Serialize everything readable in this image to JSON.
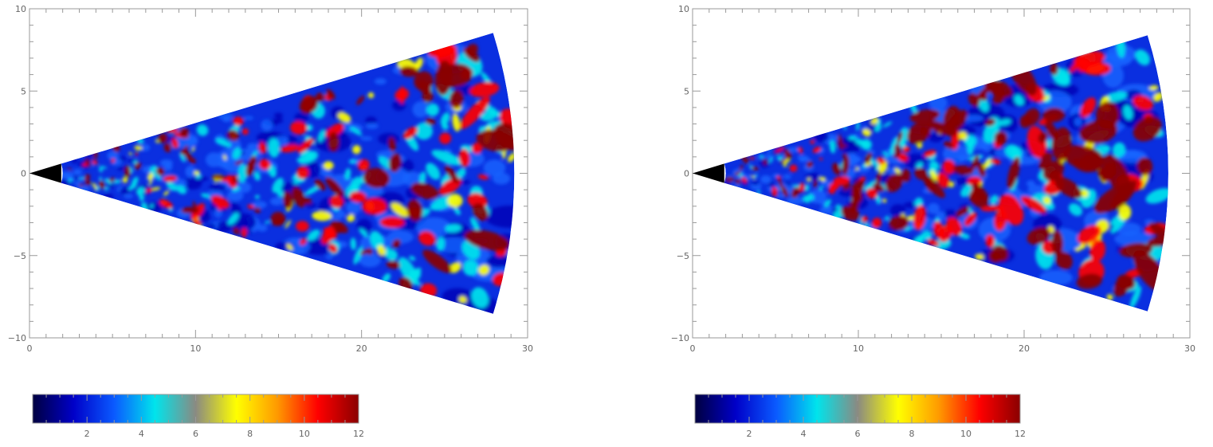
{
  "chart_data": [
    {
      "type": "heatmap",
      "shape": "wedge",
      "xlim": [
        0,
        30
      ],
      "ylim": [
        -10,
        10
      ],
      "xticks": [
        0,
        10,
        20,
        30
      ],
      "yticks": [
        -10,
        -5,
        0,
        5,
        10
      ],
      "x_tick_labels": [
        "0",
        "10",
        "20",
        "30"
      ],
      "y_tick_labels": [
        "−10",
        "−5",
        "0",
        "5",
        "10"
      ],
      "inner_radius": 2,
      "outer_radius": 29.2,
      "half_angle_deg": 17,
      "colorbar": {
        "range": [
          0,
          12
        ],
        "ticks": [
          2,
          4,
          6,
          8,
          10,
          12
        ],
        "tick_labels": [
          "2",
          "4",
          "6",
          "8",
          "10",
          "12"
        ],
        "colors": [
          "#000040",
          "#0000c8",
          "#0a5aff",
          "#00e4ec",
          "#8a8a82",
          "#ffff00",
          "#ff9a00",
          "#ff0000",
          "#8a0000"
        ]
      },
      "grid": false
    },
    {
      "type": "heatmap",
      "shape": "wedge",
      "xlim": [
        0,
        30
      ],
      "ylim": [
        -10,
        10
      ],
      "xticks": [
        0,
        10,
        20,
        30
      ],
      "yticks": [
        -10,
        -5,
        0,
        5,
        10
      ],
      "x_tick_labels": [
        "0",
        "10",
        "20",
        "30"
      ],
      "y_tick_labels": [
        "−10",
        "−5",
        "0",
        "5",
        "10"
      ],
      "inner_radius": 2,
      "outer_radius": 28.7,
      "half_angle_deg": 17,
      "colorbar": {
        "range": [
          0,
          12
        ],
        "ticks": [
          2,
          4,
          6,
          8,
          10,
          12
        ],
        "tick_labels": [
          "2",
          "4",
          "6",
          "8",
          "10",
          "12"
        ],
        "colors": [
          "#000040",
          "#0000c8",
          "#0a5aff",
          "#00e4ec",
          "#8a8a82",
          "#ffff00",
          "#ff9a00",
          "#ff0000",
          "#8a0000"
        ]
      },
      "grid": false
    }
  ]
}
